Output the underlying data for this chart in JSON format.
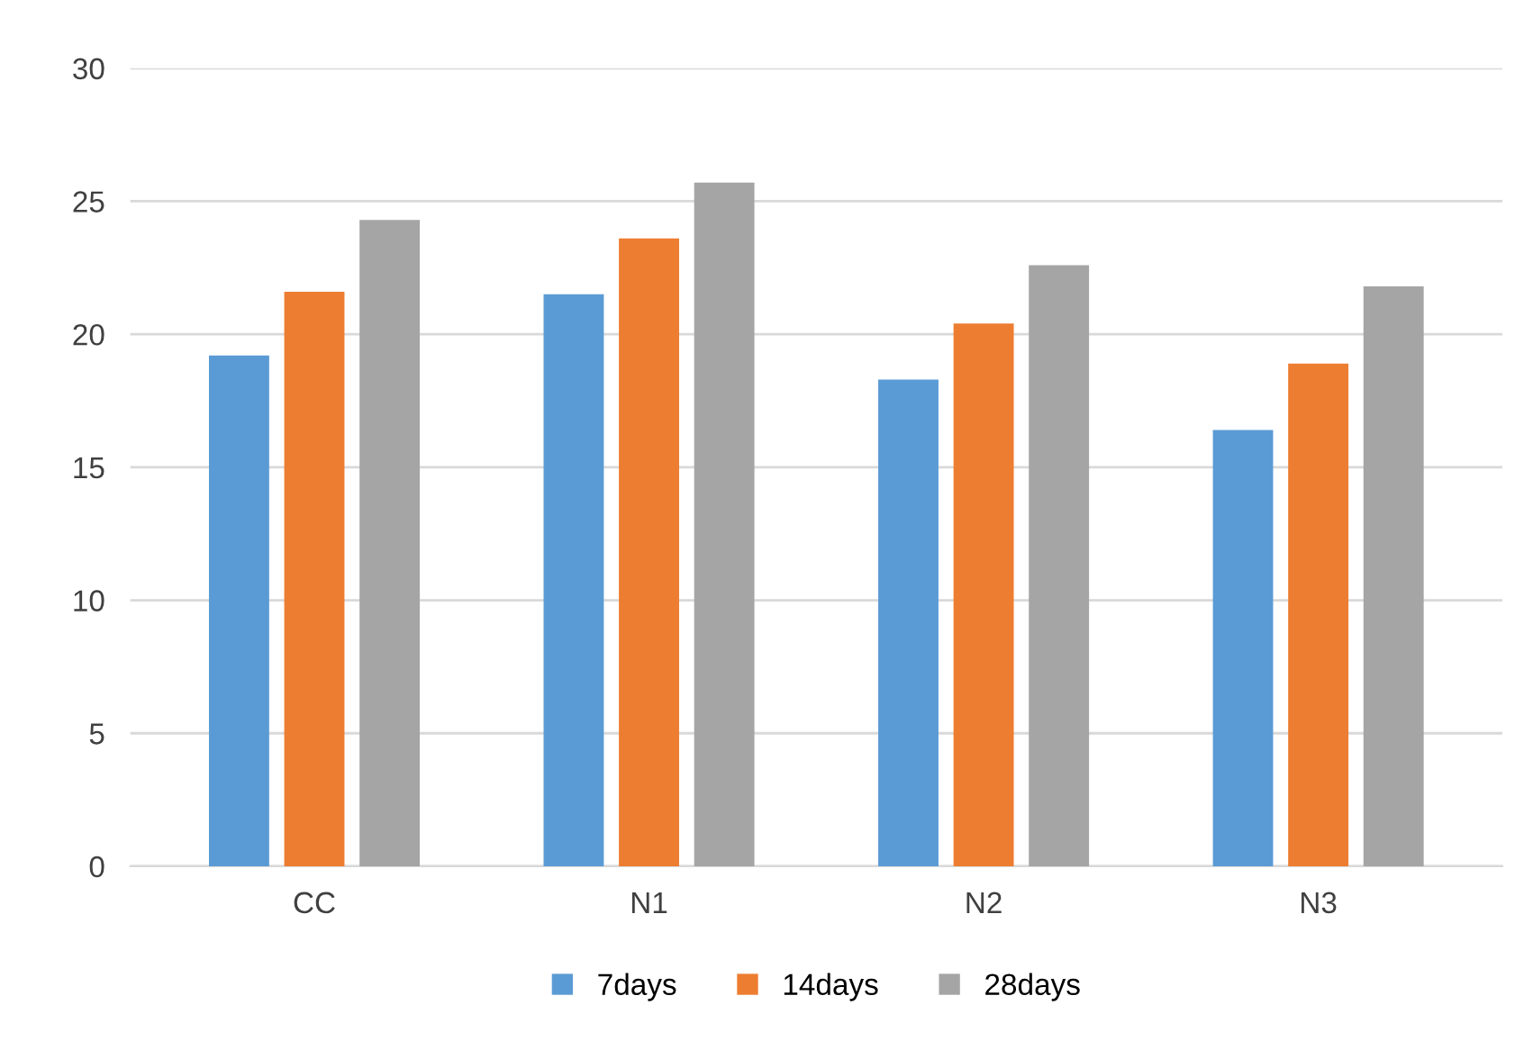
{
  "chart_data": {
    "type": "bar",
    "categories": [
      "CC",
      "N1",
      "N2",
      "N3"
    ],
    "series": [
      {
        "name": "7days",
        "color": "#5b9bd5",
        "values": [
          19.2,
          21.5,
          18.3,
          16.4
        ]
      },
      {
        "name": "14days",
        "color": "#ed7d31",
        "values": [
          21.6,
          23.6,
          20.4,
          18.9
        ]
      },
      {
        "name": "28days",
        "color": "#a5a5a5",
        "values": [
          24.3,
          25.7,
          22.6,
          21.8
        ]
      }
    ],
    "ylim": [
      0,
      30
    ],
    "yticks": [
      0,
      5,
      10,
      15,
      20,
      25,
      30
    ],
    "grid": "y",
    "legend": "bottom"
  }
}
